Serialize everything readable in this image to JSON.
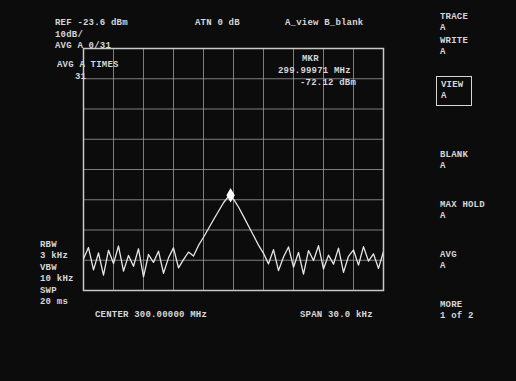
{
  "chart_data": {
    "type": "line",
    "series": [
      {
        "name": "TRACE A",
        "color": "#e6e6e6",
        "values": [
          -93.1,
          -89.4,
          -96.8,
          -91.2,
          -98.5,
          -90.3,
          -94.7,
          -88.9,
          -97.2,
          -92.0,
          -95.6,
          -89.8,
          -99.1,
          -91.7,
          -94.3,
          -90.6,
          -97.9,
          -92.8,
          -89.5,
          -96.1,
          -93.4,
          -90.9,
          -92.2,
          -88.7,
          -86.0,
          -83.1,
          -80.2,
          -77.4,
          -74.6,
          -72.5,
          -73.4,
          -76.0,
          -79.1,
          -82.3,
          -85.4,
          -88.6,
          -91.3,
          -94.8,
          -90.1,
          -97.0,
          -92.5,
          -89.2,
          -95.9,
          -91.0,
          -98.2,
          -90.4,
          -93.7,
          -88.8,
          -96.5,
          -91.9,
          -94.9,
          -89.6,
          -97.6,
          -92.3,
          -90.2,
          -95.2,
          -89.1,
          -93.9,
          -91.5,
          -96.3,
          -90.7
        ]
      }
    ],
    "x": [
      299.985,
      299.9855,
      299.986,
      299.9865,
      299.987,
      299.9875,
      299.988,
      299.9885,
      299.989,
      299.9895,
      299.99,
      299.9905,
      299.991,
      299.9915,
      299.992,
      299.9925,
      299.993,
      299.9935,
      299.994,
      299.9945,
      299.995,
      299.9955,
      299.996,
      299.9965,
      299.997,
      299.9975,
      299.998,
      299.9985,
      299.999,
      299.9995,
      300,
      300.0005,
      300.001,
      300.0015,
      300.002,
      300.0025,
      300.003,
      300.0035,
      300.004,
      300.0045,
      300.005,
      300.0055,
      300.006,
      300.0065,
      300.007,
      300.0075,
      300.008,
      300.0085,
      300.009,
      300.0095,
      300.01,
      300.0105,
      300.011,
      300.0115,
      300.012,
      300.0125,
      300.013,
      300.0135,
      300.014,
      300.0145,
      300.015
    ],
    "xlim": [
      299.985,
      300.015
    ],
    "xticks": [
      299.985,
      299.988,
      299.991,
      299.994,
      299.997,
      300,
      300.003,
      300.006,
      300.009,
      300.012,
      300.015
    ],
    "ylim": [
      -103.6,
      -23.6
    ],
    "yticks": [
      -103.6,
      -93.6,
      -83.6,
      -73.6,
      -63.6,
      -53.6,
      -43.6,
      -33.6,
      -23.6
    ],
    "grid": true,
    "tick_labels": false,
    "peak_marker": {
      "x": 299.99971,
      "y": -72.12
    },
    "annotations": [
      "REF -23.6 dBm",
      "10dB/",
      "AVG A 0/31",
      "ATN 0 dB",
      "A_view B_blank",
      "AVG A TIMES",
      "31",
      "MKR",
      "299.99971 MHz",
      "-72.12 dBm",
      "TRACE\nA",
      "WRITE\nA",
      "VIEW\nA",
      "BLANK\nA",
      "MAX HOLD\nA",
      "AVG\nA",
      "MORE\n1 of 2",
      "RBW\n3 kHz",
      "VBW\n10 kHz",
      "SWP\n20 ms",
      "CENTER 300.00000 MHz",
      "SPAN 30.0 kHz"
    ]
  }
}
